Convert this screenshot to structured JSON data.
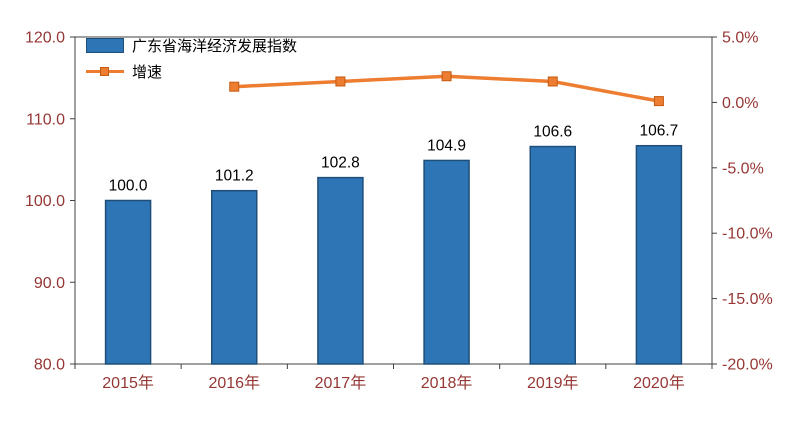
{
  "chart_data": {
    "type": "bar+line",
    "categories": [
      "2015年",
      "2016年",
      "2017年",
      "2018年",
      "2019年",
      "2020年"
    ],
    "series": [
      {
        "name": "广东省海洋经济发展指数",
        "type": "bar",
        "axis": "left",
        "values": [
          100.0,
          101.2,
          102.8,
          104.9,
          106.6,
          106.7
        ]
      },
      {
        "name": "增速",
        "type": "line",
        "axis": "right",
        "values": [
          null,
          1.2,
          1.6,
          2.0,
          1.6,
          0.1
        ]
      }
    ],
    "bar_labels": [
      "100.0",
      "101.2",
      "102.8",
      "104.9",
      "106.6",
      "106.7"
    ],
    "left_axis": {
      "min": 80,
      "max": 120,
      "ticks": [
        "120.0",
        "110.0",
        "100.0",
        "90.0",
        "80.0"
      ]
    },
    "right_axis": {
      "min": -20,
      "max": 5,
      "ticks": [
        "5.0%",
        "0.0%",
        "-5.0%",
        "-10.0%",
        "-15.0%",
        "-20.0%"
      ]
    },
    "grid": false,
    "legend_position": "top-left-inside"
  },
  "colors": {
    "bar_fill": "#2E75B6",
    "bar_border": "#1F4E79",
    "line": "#ED7D31",
    "line_border": "#C55A11",
    "axis": "#404040",
    "tick_text": "#953735",
    "data_label_text": "#000000"
  }
}
